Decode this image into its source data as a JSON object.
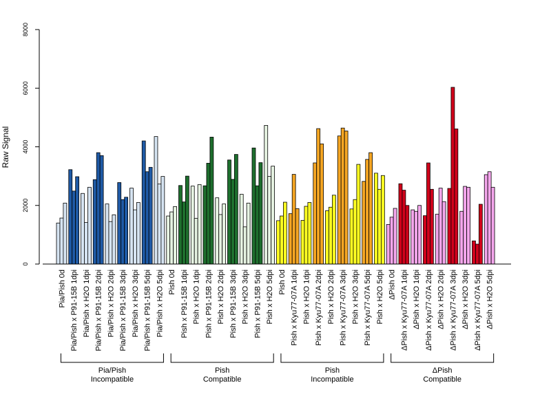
{
  "chart_data": {
    "type": "bar",
    "ylabel": "Raw Signal",
    "ylim": [
      0,
      8000
    ],
    "yticks": [
      0,
      2000,
      4000,
      6000,
      8000
    ],
    "bars_per_category": 3,
    "colors": {
      "pia_dark": "#1f5aa6",
      "pia_light": "#d6e4f2",
      "pish_c_dark": "#1e6f2e",
      "pish_c_light": "#e6f3e2",
      "pish_i_dark": "#f5a623",
      "pish_i_light": "#ffff22",
      "dpish_dark": "#d0021b",
      "dpish_light": "#f4a6ec"
    },
    "categories": [
      {
        "label": "Pia/Pish 0d",
        "color": "pia_light",
        "values": [
          1400,
          1570,
          2080
        ]
      },
      {
        "label": "Pia/Pish x P91-15B 1dpi",
        "color": "pia_dark",
        "values": [
          3220,
          2490,
          2980
        ]
      },
      {
        "label": "Pia/Pish x H2O 1dpi",
        "color": "pia_light",
        "values": [
          2410,
          1420,
          2620
        ]
      },
      {
        "label": "Pia/Pish x P91-15B 2dpi",
        "color": "pia_dark",
        "values": [
          2880,
          3800,
          3700
        ]
      },
      {
        "label": "Pia/Pish x H2O 2dpi",
        "color": "pia_light",
        "values": [
          2050,
          1450,
          1680
        ]
      },
      {
        "label": "Pia/Pish x P91-15B 3dpi",
        "color": "pia_dark",
        "values": [
          2780,
          2200,
          2280
        ]
      },
      {
        "label": "Pia/Pish x H2O 3dpi",
        "color": "pia_light",
        "values": [
          2590,
          1850,
          2100
        ]
      },
      {
        "label": "Pia/Pish x P91-15B 5dpi",
        "color": "pia_dark",
        "values": [
          4200,
          3150,
          3300
        ]
      },
      {
        "label": "Pia/Pish x H2O 5dpi",
        "color": "pia_light",
        "values": [
          4350,
          2730,
          2990
        ]
      },
      {
        "label": "Pish 0d",
        "color": "pish_c_light",
        "values": [
          1640,
          1780,
          1960
        ]
      },
      {
        "label": "Pish x P91-15B 1dpi",
        "color": "pish_c_dark",
        "values": [
          2680,
          2120,
          3000
        ]
      },
      {
        "label": "Pish x H2O 1dpi",
        "color": "pish_c_light",
        "values": [
          2660,
          1560,
          2710
        ]
      },
      {
        "label": "Pish x P91-15B 2dpi",
        "color": "pish_c_dark",
        "values": [
          2670,
          3440,
          4330
        ]
      },
      {
        "label": "Pish x H2O 2dpi",
        "color": "pish_c_light",
        "values": [
          2260,
          1690,
          2050
        ]
      },
      {
        "label": "Pish x P91-15B 3dpi",
        "color": "pish_c_dark",
        "values": [
          3550,
          2890,
          3740
        ]
      },
      {
        "label": "Pish x H2O 3dpi",
        "color": "pish_c_light",
        "values": [
          2380,
          1270,
          2080
        ]
      },
      {
        "label": "Pish x P91-15B 5dpi",
        "color": "pish_c_dark",
        "values": [
          3960,
          2670,
          3460
        ]
      },
      {
        "label": "Pish x H2O 5dpi",
        "color": "pish_c_light",
        "values": [
          4730,
          2990,
          3340
        ]
      },
      {
        "label": "Pish 0d",
        "color": "pish_i_light",
        "values": [
          1480,
          1640,
          2110
        ]
      },
      {
        "label": "Pish x Kyu77-07A 1dpi",
        "color": "pish_i_dark",
        "values": [
          1720,
          3060,
          1890
        ]
      },
      {
        "label": "Pish x H2O 1dpi",
        "color": "pish_i_light",
        "values": [
          1490,
          1970,
          2100
        ]
      },
      {
        "label": "Pish x Kyu77-07A 2dpi",
        "color": "pish_i_dark",
        "values": [
          3450,
          4620,
          4100
        ]
      },
      {
        "label": "Pish x H2O 2dpi",
        "color": "pish_i_light",
        "values": [
          1820,
          1940,
          2350
        ]
      },
      {
        "label": "Pish x Kyu77-07A 3dpi",
        "color": "pish_i_dark",
        "values": [
          4370,
          4640,
          4540
        ]
      },
      {
        "label": "Pish x H2O 3dpi",
        "color": "pish_i_light",
        "values": [
          1880,
          2200,
          3400
        ]
      },
      {
        "label": "Pish x Kyu77-07A 5dpi",
        "color": "pish_i_dark",
        "values": [
          2820,
          3570,
          3800
        ]
      },
      {
        "label": "Pish x H2O 5dpi",
        "color": "pish_i_light",
        "values": [
          3100,
          2550,
          3020
        ]
      },
      {
        "label": "ΔPish 0d",
        "color": "dpish_light",
        "values": [
          1350,
          1600,
          1900
        ]
      },
      {
        "label": "ΔPish x Kyu77-07A 1dpi",
        "color": "dpish_dark",
        "values": [
          2740,
          2520,
          2000
        ]
      },
      {
        "label": "ΔPish x H2O 1dpi",
        "color": "dpish_light",
        "values": [
          1850,
          1800,
          2000
        ]
      },
      {
        "label": "ΔPish x Kyu77-07A 2dpi",
        "color": "dpish_dark",
        "values": [
          1650,
          3450,
          2550
        ]
      },
      {
        "label": "ΔPish x H2O 2dpi",
        "color": "dpish_light",
        "values": [
          1700,
          2590,
          2130
        ]
      },
      {
        "label": "ΔPish x Kyu77-07A 3dpi",
        "color": "dpish_dark",
        "values": [
          2580,
          6030,
          4610
        ]
      },
      {
        "label": "ΔPish x H2O 3dpi",
        "color": "dpish_light",
        "values": [
          1800,
          2650,
          2620
        ]
      },
      {
        "label": "ΔPish x Kyu77-07A 5dpi",
        "color": "dpish_dark",
        "values": [
          790,
          680,
          2040
        ]
      },
      {
        "label": "ΔPish x H2O 5dpi",
        "color": "dpish_light",
        "values": [
          3050,
          3150,
          2620
        ]
      }
    ],
    "groups": [
      {
        "line1": "Pia/Pish",
        "line2": "Incompatible",
        "first": 0,
        "last": 8
      },
      {
        "line1": "Pish",
        "line2": "Compatible",
        "first": 9,
        "last": 17
      },
      {
        "line1": "Pish",
        "line2": "Incompatible",
        "first": 18,
        "last": 26
      },
      {
        "line1": "ΔPish",
        "line2": "Compatible",
        "first": 27,
        "last": 35
      }
    ]
  }
}
